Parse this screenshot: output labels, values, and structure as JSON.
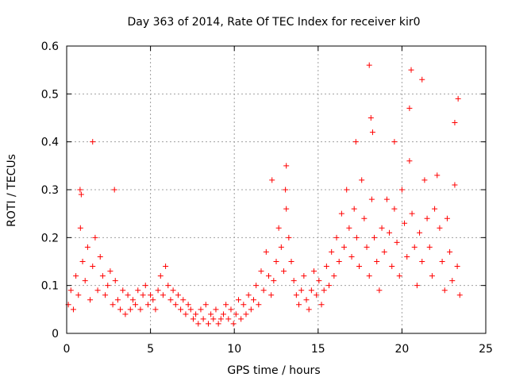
{
  "chart_data": {
    "type": "scatter",
    "title": "Day 363 of 2014, Rate Of TEC Index for receiver kir0",
    "xlabel": "GPS time / hours",
    "ylabel": "ROTI / TECUs",
    "xlim": [
      0,
      25
    ],
    "ylim": [
      0,
      0.6
    ],
    "x_ticks": [
      0,
      5,
      10,
      15,
      20,
      25
    ],
    "y_ticks": [
      0,
      0.1,
      0.2,
      0.3,
      0.4,
      0.5,
      0.6
    ],
    "x_tick_labels": [
      "0",
      "5",
      "10",
      "15",
      "20",
      "25"
    ],
    "y_tick_labels": [
      "0",
      "0.1",
      "0.2",
      "0.3",
      "0.4",
      "0.5",
      "0.6"
    ],
    "grid": true,
    "marker": "+",
    "series": [
      {
        "name": "ROTI",
        "color": "#ff0000",
        "x": [
          0.1,
          0.25,
          0.4,
          0.55,
          0.7,
          0.82,
          0.95,
          1.1,
          1.25,
          1.4,
          1.55,
          1.7,
          1.85,
          2.0,
          2.15,
          2.3,
          2.45,
          2.6,
          2.75,
          2.9,
          3.05,
          3.2,
          3.35,
          3.5,
          3.65,
          3.8,
          3.95,
          4.1,
          4.25,
          4.4,
          4.55,
          4.7,
          4.85,
          5.0,
          5.15,
          5.3,
          5.45,
          5.6,
          5.75,
          5.9,
          6.05,
          6.2,
          6.35,
          6.5,
          6.65,
          6.8,
          6.95,
          7.1,
          7.25,
          7.4,
          7.55,
          7.7,
          7.85,
          8.0,
          8.15,
          8.3,
          8.45,
          8.6,
          8.75,
          8.9,
          9.05,
          9.2,
          9.35,
          9.5,
          9.65,
          9.8,
          9.95,
          10.1,
          10.25,
          10.4,
          10.55,
          10.7,
          10.85,
          11.0,
          11.15,
          11.3,
          11.45,
          11.6,
          11.75,
          11.9,
          12.05,
          12.2,
          12.35,
          12.5,
          12.65,
          12.8,
          12.95,
          13.1,
          13.25,
          13.4,
          13.55,
          13.7,
          13.85,
          14.0,
          14.15,
          14.3,
          14.45,
          14.6,
          14.75,
          14.9,
          15.05,
          15.2,
          15.35,
          15.5,
          15.65,
          15.8,
          15.95,
          16.1,
          16.25,
          16.4,
          16.55,
          16.7,
          16.85,
          17.0,
          17.15,
          17.3,
          17.45,
          17.6,
          17.75,
          17.9,
          18.05,
          18.2,
          18.35,
          18.5,
          18.65,
          18.8,
          18.95,
          19.1,
          19.25,
          19.4,
          19.55,
          19.7,
          19.85,
          20.0,
          20.15,
          20.3,
          20.45,
          20.6,
          20.75,
          20.9,
          21.05,
          21.2,
          21.35,
          21.5,
          21.65,
          21.8,
          21.95,
          22.1,
          22.25,
          22.4,
          22.55,
          22.7,
          22.85,
          23.0,
          23.15,
          23.3,
          23.45,
          0.8,
          0.87,
          1.55,
          2.85,
          17.25,
          18.05,
          18.15,
          20.55,
          21.2,
          23.15,
          23.35,
          20.45,
          19.55,
          18.25,
          12.25,
          13.1,
          13.05
        ],
        "y": [
          0.06,
          0.09,
          0.05,
          0.12,
          0.08,
          0.22,
          0.15,
          0.11,
          0.18,
          0.07,
          0.14,
          0.2,
          0.09,
          0.16,
          0.12,
          0.08,
          0.1,
          0.13,
          0.06,
          0.11,
          0.07,
          0.05,
          0.09,
          0.04,
          0.08,
          0.05,
          0.07,
          0.06,
          0.09,
          0.05,
          0.08,
          0.1,
          0.06,
          0.08,
          0.07,
          0.05,
          0.09,
          0.12,
          0.08,
          0.14,
          0.1,
          0.07,
          0.09,
          0.06,
          0.08,
          0.05,
          0.07,
          0.04,
          0.06,
          0.05,
          0.03,
          0.04,
          0.02,
          0.05,
          0.03,
          0.06,
          0.02,
          0.04,
          0.03,
          0.05,
          0.02,
          0.03,
          0.04,
          0.06,
          0.03,
          0.05,
          0.02,
          0.04,
          0.07,
          0.03,
          0.06,
          0.04,
          0.08,
          0.05,
          0.07,
          0.1,
          0.06,
          0.13,
          0.09,
          0.17,
          0.12,
          0.08,
          0.11,
          0.15,
          0.22,
          0.18,
          0.13,
          0.26,
          0.2,
          0.15,
          0.11,
          0.08,
          0.06,
          0.09,
          0.12,
          0.07,
          0.05,
          0.09,
          0.13,
          0.08,
          0.11,
          0.06,
          0.09,
          0.14,
          0.1,
          0.17,
          0.12,
          0.2,
          0.15,
          0.25,
          0.18,
          0.3,
          0.22,
          0.16,
          0.26,
          0.2,
          0.14,
          0.32,
          0.24,
          0.18,
          0.12,
          0.28,
          0.2,
          0.15,
          0.09,
          0.22,
          0.17,
          0.28,
          0.21,
          0.14,
          0.26,
          0.19,
          0.12,
          0.3,
          0.23,
          0.16,
          0.36,
          0.25,
          0.18,
          0.1,
          0.21,
          0.15,
          0.32,
          0.24,
          0.18,
          0.12,
          0.26,
          0.33,
          0.22,
          0.15,
          0.09,
          0.24,
          0.17,
          0.11,
          0.31,
          0.14,
          0.08,
          0.3,
          0.29,
          0.4,
          0.3,
          0.4,
          0.56,
          0.45,
          0.55,
          0.53,
          0.44,
          0.49,
          0.47,
          0.4,
          0.42,
          0.32,
          0.35,
          0.3
        ]
      }
    ]
  }
}
